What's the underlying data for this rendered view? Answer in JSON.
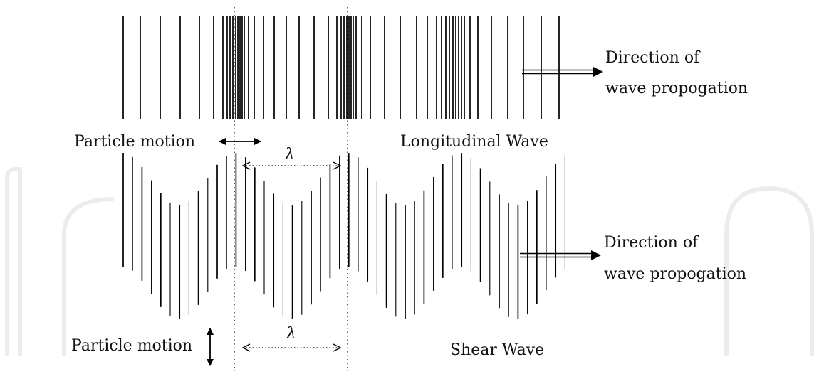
{
  "colors": {
    "ink": "#000000",
    "watermark": "#ececec",
    "background": "#ffffff"
  },
  "longitudinal": {
    "particle_motion_label": "Particle motion",
    "wave_label": "Longitudinal Wave",
    "wavelength_label": "λ",
    "direction_label_line1": "Direction of",
    "direction_label_line2": "wave propogation"
  },
  "shear": {
    "particle_motion_label": "Particle motion",
    "wave_label": "Shear Wave",
    "wavelength_label": "λ",
    "direction_label_line1": "Direction of",
    "direction_label_line2": "wave propogation"
  }
}
